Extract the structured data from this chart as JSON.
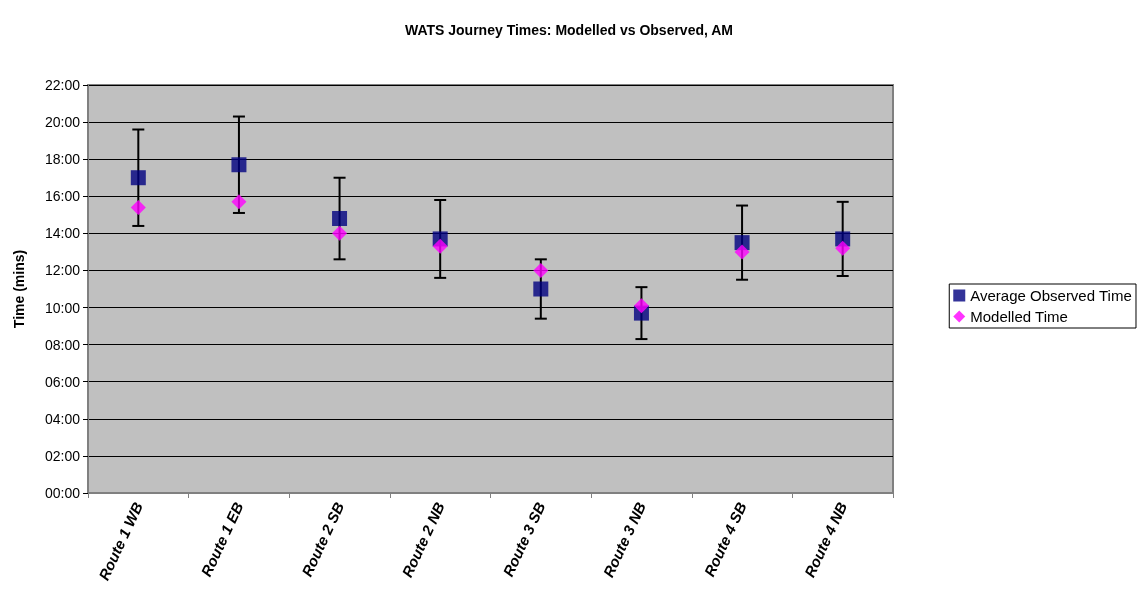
{
  "chart_data": {
    "type": "scatter",
    "title": "WATS Journey Times: Modelled vs Observed, AM",
    "ylabel": "Time (mins)",
    "categories": [
      "Route 1 WB",
      "Route 1 EB",
      "Route 2 SB",
      "Route 2 NB",
      "Route 3 SB",
      "Route 3 NB",
      "Route 4 SB",
      "Route 4 NB"
    ],
    "series": [
      {
        "name": "Average Observed Time",
        "color": "#000080",
        "marker": "square",
        "values": [
          17.0,
          17.7,
          14.8,
          13.7,
          11.0,
          9.7,
          13.5,
          13.7
        ],
        "errors": [
          2.6,
          2.6,
          2.2,
          2.1,
          1.6,
          1.4,
          2.0,
          2.0
        ]
      },
      {
        "name": "Modelled Time",
        "color": "#ff00ff",
        "marker": "diamond",
        "values": [
          15.4,
          15.7,
          14.0,
          13.3,
          12.0,
          10.1,
          13.0,
          13.2
        ]
      }
    ],
    "ylim": [
      0,
      22
    ],
    "yticks": [
      {
        "value": 0,
        "label": "00:00"
      },
      {
        "value": 2,
        "label": "02:00"
      },
      {
        "value": 4,
        "label": "04:00"
      },
      {
        "value": 6,
        "label": "06:00"
      },
      {
        "value": 8,
        "label": "08:00"
      },
      {
        "value": 10,
        "label": "10:00"
      },
      {
        "value": 12,
        "label": "12:00"
      },
      {
        "value": 14,
        "label": "14:00"
      },
      {
        "value": 16,
        "label": "16:00"
      },
      {
        "value": 18,
        "label": "18:00"
      },
      {
        "value": 20,
        "label": "20:00"
      },
      {
        "value": 22,
        "label": "22:00"
      }
    ],
    "grid": "y",
    "legend": "right"
  }
}
